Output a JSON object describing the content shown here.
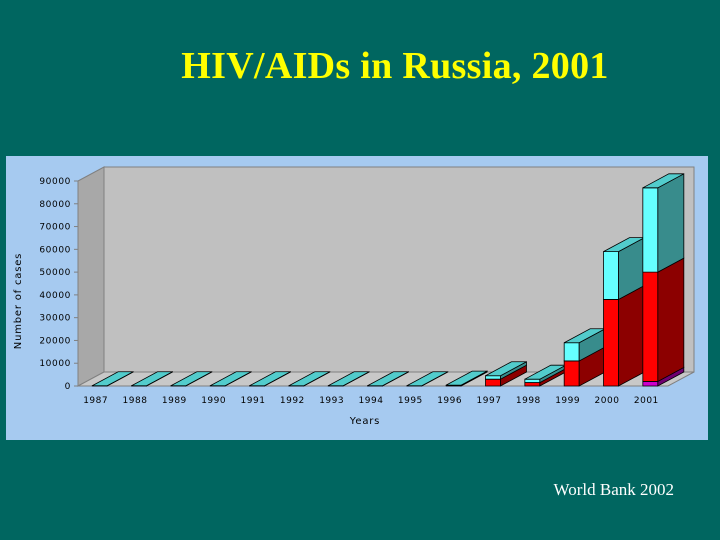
{
  "slide": {
    "title": "HIV/AIDs in Russia, 2001",
    "source": "World Bank 2002"
  },
  "chart_data": {
    "type": "bar",
    "stacked": true,
    "three_d": true,
    "categories": [
      "1987",
      "1988",
      "1989",
      "1990",
      "1991",
      "1992",
      "1993",
      "1994",
      "1995",
      "1996",
      "1997",
      "1998",
      "1999",
      "2000",
      "2001"
    ],
    "series": [
      {
        "color": "#cc00cc",
        "values": [
          0,
          0,
          0,
          0,
          0,
          0,
          0,
          0,
          0,
          0,
          0,
          0,
          0,
          0,
          2000
        ]
      },
      {
        "color": "#ff0000",
        "values": [
          0,
          0,
          0,
          0,
          0,
          0,
          0,
          0,
          0,
          200,
          3000,
          1500,
          11000,
          38000,
          48000
        ]
      },
      {
        "color": "#66ffff",
        "values": [
          100,
          100,
          100,
          100,
          100,
          100,
          100,
          100,
          100,
          200,
          1500,
          1500,
          8000,
          21000,
          37000
        ]
      }
    ],
    "xlabel": "Years",
    "ylabel": "Number of cases",
    "ylim": [
      0,
      90000
    ],
    "yticks": [
      0,
      10000,
      20000,
      30000,
      40000,
      50000,
      60000,
      70000,
      80000,
      90000
    ],
    "ytick_labels": [
      "0",
      "10000",
      "20000",
      "30000",
      "40000",
      "50000",
      "60000",
      "70000",
      "80000",
      "90000"
    ],
    "grid": false,
    "legend": "none"
  }
}
